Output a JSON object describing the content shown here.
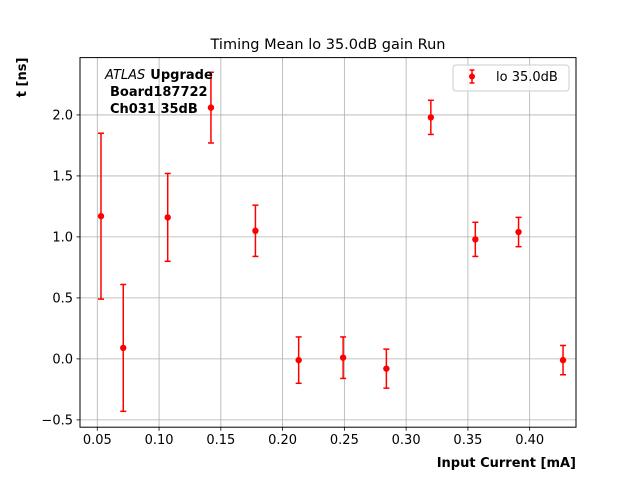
{
  "chart_data": {
    "type": "scatter",
    "title": "Timing Mean lo 35.0dB gain Run",
    "xlabel": "Input Current [mA]",
    "ylabel": "t [ns]",
    "xlim": [
      0.036,
      0.4375
    ],
    "ylim": [
      -0.56,
      2.47
    ],
    "xticks": [
      0.05,
      0.1,
      0.15,
      0.2,
      0.25,
      0.3,
      0.35,
      0.4
    ],
    "xtick_labels": [
      "0.05",
      "0.10",
      "0.15",
      "0.20",
      "0.25",
      "0.30",
      "0.35",
      "0.40"
    ],
    "yticks": [
      -0.5,
      0.0,
      0.5,
      1.0,
      1.5,
      2.0
    ],
    "ytick_labels": [
      "−0.5",
      "0.0",
      "0.5",
      "1.0",
      "1.5",
      "2.0"
    ],
    "grid": true,
    "legend_position": "top-right",
    "series": [
      {
        "name": "lo 35.0dB",
        "color": "#ff0000",
        "marker": "circle",
        "x": [
          0.053,
          0.071,
          0.107,
          0.142,
          0.178,
          0.213,
          0.249,
          0.284,
          0.32,
          0.356,
          0.391,
          0.427
        ],
        "y": [
          1.17,
          0.09,
          1.16,
          2.06,
          1.05,
          -0.01,
          0.01,
          -0.08,
          1.98,
          0.98,
          1.04,
          -0.01
        ],
        "yerr": [
          0.68,
          0.52,
          0.36,
          0.29,
          0.21,
          0.19,
          0.17,
          0.16,
          0.14,
          0.14,
          0.12,
          0.12
        ]
      }
    ],
    "annotation": {
      "brand": "ATLAS",
      "brand_suffix": "Upgrade",
      "line2": "Board187722",
      "line3": "Ch031 35dB"
    }
  }
}
